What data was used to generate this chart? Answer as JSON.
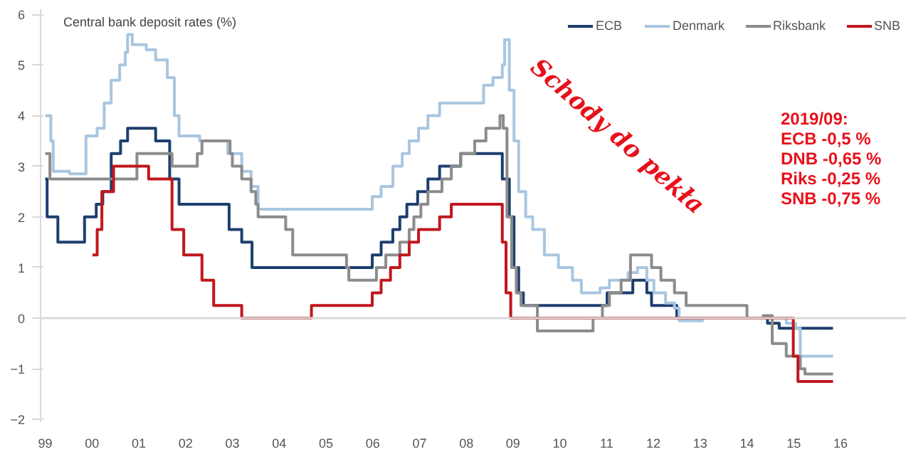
{
  "chart_data": {
    "type": "step",
    "title": "Central bank deposit rates (%)",
    "xlim": [
      1998.9,
      2017.4
    ],
    "ylim": [
      -2.05,
      6.1
    ],
    "xticks": [
      {
        "value": 1999,
        "label": "99"
      },
      {
        "value": 2000,
        "label": "00"
      },
      {
        "value": 2001,
        "label": "01"
      },
      {
        "value": 2002,
        "label": "02"
      },
      {
        "value": 2003,
        "label": "03"
      },
      {
        "value": 2004,
        "label": "04"
      },
      {
        "value": 2005,
        "label": "05"
      },
      {
        "value": 2006,
        "label": "06"
      },
      {
        "value": 2007,
        "label": "07"
      },
      {
        "value": 2008,
        "label": "08"
      },
      {
        "value": 2009,
        "label": "09"
      },
      {
        "value": 2010,
        "label": "10"
      },
      {
        "value": 2011,
        "label": "11"
      },
      {
        "value": 2012,
        "label": "12"
      },
      {
        "value": 2013,
        "label": "13"
      },
      {
        "value": 2014,
        "label": "14"
      },
      {
        "value": 2015,
        "label": "15"
      },
      {
        "value": 2016,
        "label": "16"
      }
    ],
    "yticks": [
      -2,
      -1,
      0,
      1,
      2,
      3,
      4,
      5,
      6
    ],
    "grid": false,
    "legend": "top right",
    "line_style": "solid",
    "marker": "none",
    "ref_lines": [
      {
        "axis": "y",
        "value": 0,
        "color": "#d9d9d9"
      }
    ],
    "series": [
      {
        "name": "ECB",
        "color": "#1d3f6e",
        "x": [
          1999.0,
          1999.04,
          1999.27,
          1999.84,
          2000.09,
          2000.23,
          2000.41,
          2000.61,
          2000.76,
          2001.36,
          2001.66,
          2001.86,
          2002.93,
          2003.2,
          2003.42,
          2005.99,
          2006.18,
          2006.43,
          2006.58,
          2006.73,
          2006.96,
          2007.18,
          2007.43,
          2007.88,
          2008.77,
          2008.92,
          2009.02,
          2009.12,
          2009.22,
          2011.01,
          2011.56,
          2011.86,
          2011.96,
          2012.5,
          2014.44,
          2014.69,
          2015.84
        ],
        "values": [
          2.75,
          2.0,
          1.5,
          2.0,
          2.25,
          2.5,
          3.25,
          3.5,
          3.75,
          3.5,
          2.75,
          2.25,
          1.75,
          1.5,
          1.0,
          1.25,
          1.5,
          1.75,
          2.0,
          2.25,
          2.5,
          2.75,
          3.0,
          3.25,
          2.75,
          2.0,
          1.0,
          0.5,
          0.25,
          0.5,
          0.75,
          0.5,
          0.25,
          0.0,
          -0.1,
          -0.2,
          -0.2
        ]
      },
      {
        "name": "Denmark",
        "color": "#a9c6e0",
        "x": [
          1999.0,
          1999.12,
          1999.17,
          1999.52,
          1999.87,
          2000.11,
          2000.26,
          2000.41,
          2000.59,
          2000.71,
          2000.76,
          2000.86,
          2001.16,
          2001.36,
          2001.61,
          2001.76,
          2001.86,
          2002.3,
          2002.9,
          2003.2,
          2003.4,
          2003.55,
          2005.99,
          2006.18,
          2006.43,
          2006.63,
          2006.78,
          2006.98,
          2007.18,
          2007.43,
          2008.37,
          2008.57,
          2008.77,
          2008.82,
          2008.92,
          2009.02,
          2009.12,
          2009.27,
          2009.42,
          2009.67,
          2009.97,
          2010.27,
          2010.46,
          2010.86,
          2011.06,
          2011.46,
          2011.66,
          2011.86,
          2012.01,
          2012.26,
          2012.45,
          2012.55,
          2013.05,
          2014.84,
          2015.04,
          2015.14,
          2015.84
        ],
        "values": [
          4.0,
          3.5,
          2.9,
          2.85,
          3.6,
          3.75,
          4.25,
          4.7,
          5.0,
          5.25,
          5.6,
          5.4,
          5.3,
          5.1,
          4.75,
          4.0,
          3.6,
          3.5,
          3.25,
          2.9,
          2.6,
          2.15,
          2.4,
          2.6,
          3.0,
          3.25,
          3.5,
          3.75,
          4.0,
          4.25,
          4.6,
          4.75,
          5.0,
          5.5,
          4.5,
          3.5,
          2.5,
          2.0,
          1.75,
          1.25,
          1.0,
          0.75,
          0.5,
          0.6,
          0.75,
          0.9,
          1.0,
          0.75,
          0.5,
          0.3,
          0.2,
          -0.05,
          0.0,
          -0.1,
          -0.2,
          -0.75,
          -0.75
        ]
      },
      {
        "name": "Riksbank",
        "color": "#8c8c8c",
        "x": [
          1999.0,
          1999.1,
          2000.96,
          2001.71,
          2002.25,
          2002.35,
          2002.95,
          2003.0,
          2003.2,
          2003.4,
          2003.5,
          2003.55,
          2004.14,
          2004.29,
          2005.44,
          2005.49,
          2006.08,
          2006.28,
          2006.58,
          2006.78,
          2006.88,
          2007.03,
          2007.18,
          2007.48,
          2007.68,
          2007.88,
          2008.18,
          2008.42,
          2008.72,
          2008.79,
          2008.87,
          2008.97,
          2009.07,
          2009.17,
          2009.52,
          2010.71,
          2010.91,
          2011.06,
          2011.31,
          2011.51,
          2011.96,
          2012.16,
          2012.45,
          2012.7,
          2014.0,
          2014.35,
          2014.54,
          2014.84,
          2015.14,
          2015.24,
          2015.84
        ],
        "values": [
          3.25,
          2.75,
          3.25,
          3.0,
          3.25,
          3.5,
          3.25,
          3.0,
          2.75,
          2.5,
          2.25,
          2.0,
          1.75,
          1.25,
          1.0,
          0.75,
          1.0,
          1.25,
          1.5,
          1.75,
          2.0,
          2.25,
          2.5,
          2.75,
          3.0,
          3.25,
          3.5,
          3.75,
          4.0,
          3.75,
          2.0,
          1.0,
          0.5,
          0.25,
          -0.25,
          0.0,
          0.25,
          0.5,
          0.75,
          1.25,
          1.0,
          0.75,
          0.5,
          0.25,
          0.0,
          0.05,
          -0.5,
          -0.75,
          -1.0,
          -1.1,
          -1.1
        ]
      },
      {
        "name": "SNB",
        "color": "#c0171e",
        "x": [
          2000.01,
          2000.11,
          2000.21,
          2000.46,
          2001.21,
          2001.71,
          2001.96,
          2002.35,
          2002.6,
          2003.2,
          2004.69,
          2005.99,
          2006.18,
          2006.38,
          2006.58,
          2006.78,
          2006.98,
          2007.43,
          2007.68,
          2008.77,
          2008.85,
          2008.95,
          2014.99,
          2015.09,
          2015.84
        ],
        "values": [
          1.25,
          1.75,
          2.5,
          3.0,
          2.75,
          1.75,
          1.25,
          0.75,
          0.25,
          0.0,
          0.25,
          0.5,
          0.75,
          1.0,
          1.25,
          1.5,
          1.75,
          2.0,
          2.25,
          1.5,
          0.5,
          0.0,
          -0.75,
          -1.25,
          -1.25
        ]
      }
    ],
    "annotations": [
      "Schody do pekła",
      "2019/09:",
      "ECB -0,5 %",
      "DNB -0,65 %",
      "Riks -0,25 %",
      "SNB -0,75 %"
    ]
  }
}
